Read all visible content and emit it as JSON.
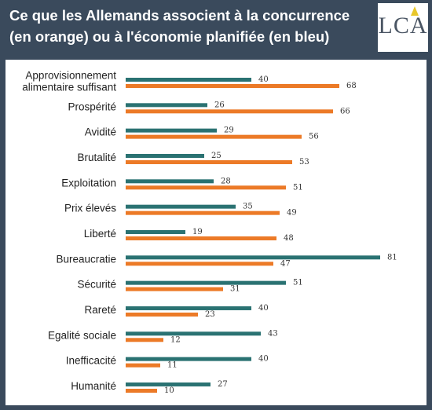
{
  "header": {
    "title_line1": "Ce que les Allemands associent à la concurrence",
    "title_line2": "(en orange) ou à l'économie planifiée (en bleu)",
    "logo_text": "LCA"
  },
  "colors": {
    "background": "#3a4a5c",
    "planned": "#2a7272",
    "competition": "#ec7a27",
    "logo_accent": "#e8c72a"
  },
  "chart_data": {
    "type": "bar",
    "orientation": "horizontal",
    "categories": [
      [
        "Approvisionnement",
        "alimentaire suffisant"
      ],
      [
        "Prospérité"
      ],
      [
        "Avidité"
      ],
      [
        "Brutalité"
      ],
      [
        "Exploitation"
      ],
      [
        "Prix élevés"
      ],
      [
        "Liberté"
      ],
      [
        "Bureaucratie"
      ],
      [
        "Sécurité"
      ],
      [
        "Rareté"
      ],
      [
        "Egalité sociale"
      ],
      [
        "Inefficacité"
      ],
      [
        "Humanité"
      ]
    ],
    "series": [
      {
        "key": "planned",
        "values": [
          40,
          26,
          29,
          25,
          28,
          35,
          19,
          81,
          51,
          40,
          43,
          40,
          27
        ]
      },
      {
        "key": "competition",
        "values": [
          68,
          66,
          56,
          53,
          51,
          49,
          48,
          47,
          31,
          23,
          12,
          11,
          10
        ]
      }
    ],
    "xlim": [
      0,
      81
    ],
    "grid": false,
    "legend": "none"
  }
}
